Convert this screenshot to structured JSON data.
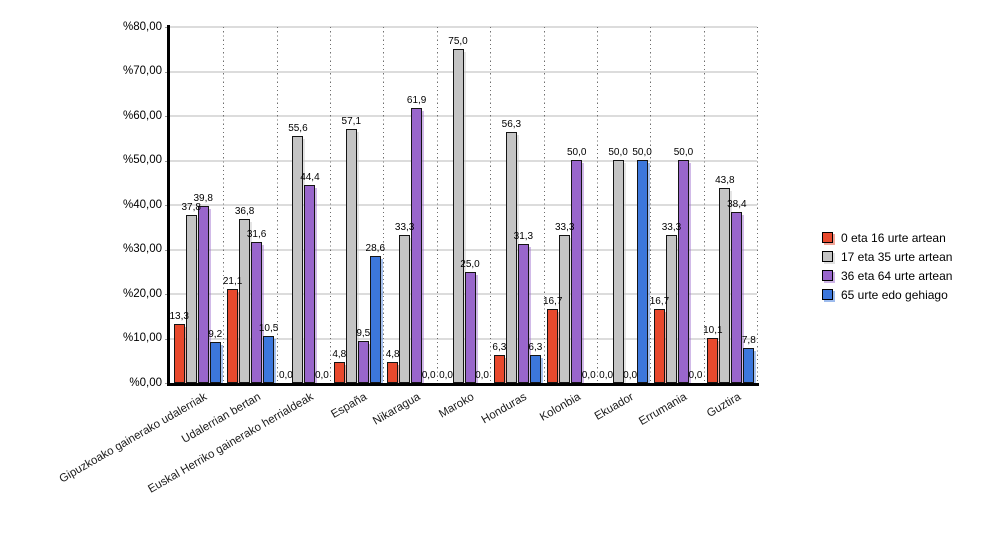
{
  "chart_data": {
    "type": "bar",
    "title": "",
    "xlabel": "",
    "ylabel": "",
    "ylim": [
      0,
      80
    ],
    "grid": true,
    "legend_position": "right",
    "y_ticks": [
      "%80,00",
      "%70,00",
      "%60,00",
      "%50,00",
      "%40,00",
      "%30,00",
      "%20,00",
      "%10,00",
      "%0,00"
    ],
    "categories": [
      "Gipuzkoako gainerako udalerriak",
      "Udalerrian bertan",
      "Euskal Herriko gainerako herrialdeak",
      "España",
      "Nikaragua",
      "Maroko",
      "Honduras",
      "Kolonbia",
      "Ekuador",
      "Errumania",
      "Guztira"
    ],
    "series": [
      {
        "name": "0 eta 16 urte artean",
        "color": "#E8492D",
        "values": [
          13.3,
          21.1,
          0.0,
          4.8,
          4.8,
          0.0,
          6.3,
          16.7,
          0.0,
          16.7,
          10.1
        ],
        "labels": [
          "13,3",
          "21,1",
          "0,0",
          "4,8",
          "4,8",
          "0,0",
          "6,3",
          "16,7",
          "0,0",
          "16,7",
          "10,1"
        ]
      },
      {
        "name": "17 eta 35 urte artean",
        "color": "#C4C4C4",
        "values": [
          37.8,
          36.8,
          55.6,
          57.1,
          33.3,
          75.0,
          56.3,
          33.3,
          50.0,
          33.3,
          43.8
        ],
        "labels": [
          "37,8",
          "36,8",
          "55,6",
          "57,1",
          "33,3",
          "75,0",
          "56,3",
          "33,3",
          "50,0",
          "33,3",
          "43,8"
        ]
      },
      {
        "name": "36 eta 64 urte artean",
        "color": "#9966CC",
        "values": [
          39.8,
          31.6,
          44.4,
          9.5,
          61.9,
          25.0,
          31.3,
          50.0,
          0.0,
          50.0,
          38.4
        ],
        "labels": [
          "39,8",
          "31,6",
          "44,4",
          "9,5",
          "61,9",
          "25,0",
          "31,3",
          "50,0",
          "0,0",
          "50,0",
          "38,4"
        ]
      },
      {
        "name": "65 urte edo gehiago",
        "color": "#3C77DC",
        "values": [
          9.2,
          10.5,
          0.0,
          28.6,
          0.0,
          0.0,
          6.3,
          0.0,
          50.0,
          0.0,
          7.8
        ],
        "labels": [
          "9,2",
          "10,5",
          "0,0",
          "28,6",
          "0,0",
          "0,0",
          "6,3",
          "0,0",
          "50,0",
          "0,0",
          "7,8"
        ]
      }
    ]
  }
}
